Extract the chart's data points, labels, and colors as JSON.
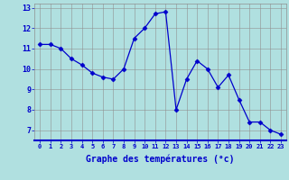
{
  "x": [
    0,
    1,
    2,
    3,
    4,
    5,
    6,
    7,
    8,
    9,
    10,
    11,
    12,
    13,
    14,
    15,
    16,
    17,
    18,
    19,
    20,
    21,
    22,
    23
  ],
  "y": [
    11.2,
    11.2,
    11.0,
    10.5,
    10.2,
    9.8,
    9.6,
    9.5,
    10.0,
    11.5,
    12.0,
    12.7,
    12.8,
    8.0,
    9.5,
    10.4,
    10.0,
    9.1,
    9.7,
    8.5,
    7.4,
    7.4,
    7.0,
    6.8
  ],
  "line_color": "#0000cc",
  "marker": "D",
  "marker_size": 2.5,
  "bg_color": "#b0e0e0",
  "grid_color": "#909090",
  "xlabel": "Graphe des températures (°c)",
  "tick_color": "#0000cc",
  "ylim": [
    6.5,
    13.2
  ],
  "yticks": [
    7,
    8,
    9,
    10,
    11,
    12,
    13
  ],
  "xticks": [
    0,
    1,
    2,
    3,
    4,
    5,
    6,
    7,
    8,
    9,
    10,
    11,
    12,
    13,
    14,
    15,
    16,
    17,
    18,
    19,
    20,
    21,
    22,
    23
  ],
  "xlim": [
    -0.5,
    23.5
  ]
}
